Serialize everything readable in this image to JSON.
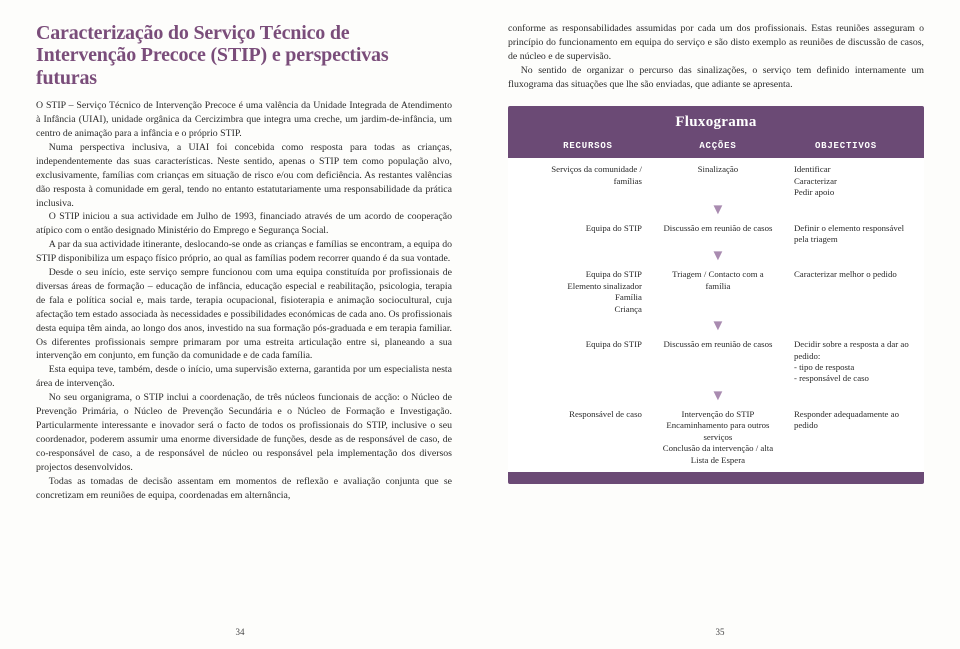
{
  "left": {
    "title": "Caracterização do Serviço Técnico de Intervenção Precoce (STIP) e perspectivas futuras",
    "paragraphs": [
      "O STIP – Serviço Técnico de Intervenção Precoce é uma valência da Unidade Integrada de Atendimento à Infância (UIAI), unidade orgânica da Cercizimbra que integra uma creche, um jardim-de-infância, um centro de animação para a infância e o próprio STIP.",
      "Numa perspectiva inclusiva, a UIAI foi concebida como resposta para todas as crianças, independentemente das suas características. Neste sentido, apenas o STIP tem como população alvo, exclusivamente, famílias com crianças em situação de risco e/ou com deficiência. As restantes valências dão resposta à comunidade em geral, tendo no entanto estatutariamente uma responsabilidade da prática inclusiva.",
      "O STIP iniciou a sua actividade em Julho de 1993, financiado através de um acordo de cooperação atípico com o então designado Ministério do Emprego e Segurança Social.",
      "A par da sua actividade itinerante, deslocando-se onde as crianças e famílias se encontram, a equipa do STIP disponibiliza um espaço físico próprio, ao qual as famílias podem recorrer quando é da sua vontade.",
      "Desde o seu início, este serviço sempre funcionou com uma equipa constituída por profissionais de diversas áreas de formação – educação de infância, educação especial e reabilitação, psicologia, terapia de fala e política social e, mais tarde, terapia ocupacional, fisioterapia e animação sociocultural, cuja afectação tem estado associada às necessidades e possibilidades económicas de cada ano. Os profissionais desta equipa têm ainda, ao longo dos anos, investido na sua formação pós-graduada e em terapia familiar. Os diferentes profissionais sempre primaram por uma estreita articulação entre si, planeando a sua intervenção em conjunto, em função da comunidade e de cada família.",
      "Esta equipa teve, também, desde o início, uma supervisão externa, garantida por um especialista nesta área de intervenção.",
      "No seu organigrama, o STIP inclui a coordenação, de três núcleos funcionais de acção: o Núcleo de Prevenção Primária, o Núcleo de Prevenção Secundária e o Núcleo de Formação e Investigação. Particularmente interessante e inovador será o facto de todos os profissionais do STIP, inclusive o seu coordenador, poderem assumir uma enorme diversidade de funções, desde as de responsável de caso, de co-responsável de caso, a de responsável de núcleo ou responsável pela implementação dos diversos projectos desenvolvidos.",
      "Todas as tomadas de decisão assentam em momentos de reflexão e avaliação conjunta que se concretizam em reuniões de equipa, coordenadas em alternância,"
    ],
    "page_num": "34"
  },
  "right": {
    "intro": [
      "conforme as responsabilidades assumidas por cada um dos profissionais. Estas reuniões asseguram o princípio do funcionamento em equipa do serviço e são disto exemplo as reuniões de discussão de casos, de núcleo e de supervisão.",
      "No sentido de organizar o percurso das sinalizações, o serviço tem definido internamente um fluxograma das situações que lhe são enviadas, que adiante se apresenta."
    ],
    "flux": {
      "title": "Fluxograma",
      "headers": {
        "r": "RECURSOS",
        "a": "ACÇÕES",
        "o": "OBJECTIVOS"
      },
      "rows": [
        {
          "r": "Serviços da comunidade / famílias",
          "a": "Sinalização",
          "o": "Identificar\nCaracterizar\nPedir apoio"
        },
        {
          "r": "Equipa do STIP",
          "a": "Discussão em reunião de casos",
          "o": "Definir o elemento responsável pela triagem"
        },
        {
          "r": "Equipa do STIP\nElemento sinalizador\nFamília\nCriança",
          "a": "Triagem / Contacto com a família",
          "o": "Caracterizar melhor o pedido"
        },
        {
          "r": "Equipa do STIP",
          "a": "Discussão em reunião de casos",
          "o": "Decidir sobre a resposta a dar ao pedido:\n- tipo de resposta\n- responsável de caso"
        },
        {
          "r": "Responsável de caso",
          "a": "Intervenção do STIP\nEncaminhamento para outros serviços\nConclusão da intervenção / alta\nLista de Espera",
          "o": "Responder adequadamente ao pedido"
        }
      ]
    },
    "page_num": "35"
  },
  "colors": {
    "purple": "#6b4a75",
    "heading": "#7a4d7a",
    "arrow": "#a98bb0"
  }
}
